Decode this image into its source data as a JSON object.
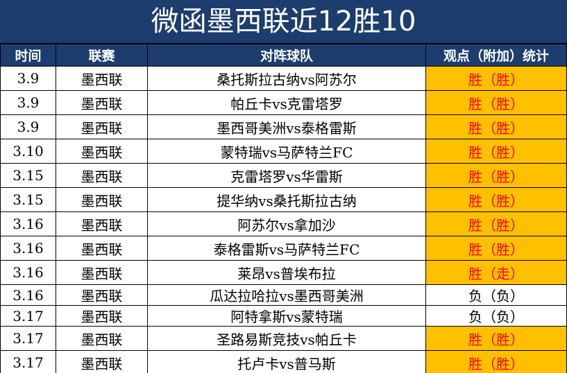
{
  "title": "微函墨西联近12胜10",
  "headers": [
    "时间",
    "联赛",
    "对阵球队",
    "观点（附加）统计"
  ],
  "rows": [
    {
      "date": "3.9",
      "league": "墨西联",
      "match": "桑托斯拉古纳vs阿苏尔",
      "result": "胜（胜）",
      "highlight": true
    },
    {
      "date": "3.9",
      "league": "墨西联",
      "match": "帕丘卡vs克雷塔罗",
      "result": "胜（胜）",
      "highlight": true
    },
    {
      "date": "3.9",
      "league": "墨西联",
      "match": "墨西哥美洲vs泰格雷斯",
      "result": "胜（胜）",
      "highlight": true
    },
    {
      "date": "3.10",
      "league": "墨西联",
      "match": "蒙特瑞vs马萨特兰FC",
      "result": "胜（胜）",
      "highlight": true
    },
    {
      "date": "3.15",
      "league": "墨西联",
      "match": "克雷塔罗vs华雷斯",
      "result": "胜（胜）",
      "highlight": true
    },
    {
      "date": "3.15",
      "league": "墨西联",
      "match": "提华纳vs桑托斯拉古纳",
      "result": "胜（胜）",
      "highlight": true
    },
    {
      "date": "3.16",
      "league": "墨西联",
      "match": "阿苏尔vs拿加沙",
      "result": "胜（胜）",
      "highlight": true
    },
    {
      "date": "3.16",
      "league": "墨西联",
      "match": "泰格雷斯vs马萨特兰FC",
      "result": "胜（胜）",
      "highlight": true
    },
    {
      "date": "3.16",
      "league": "墨西联",
      "match": "莱昂vs普埃布拉",
      "result": "胜（走）",
      "highlight": true
    },
    {
      "date": "3.16",
      "league": "墨西联",
      "match": "瓜达拉哈拉vs墨西哥美洲",
      "result": "负（负）",
      "highlight": false
    },
    {
      "date": "3.17",
      "league": "墨西联",
      "match": "阿特拿斯vs蒙特瑞",
      "result": "负（负）",
      "highlight": false
    },
    {
      "date": "3.17",
      "league": "墨西联",
      "match": "圣路易斯竞技vs帕丘卡",
      "result": "胜（胜）",
      "highlight": true
    },
    {
      "date": "3.17",
      "league": "墨西联",
      "match": "托卢卡vs普马斯",
      "result": "胜（胜）",
      "highlight": true
    }
  ],
  "colors": {
    "header_bg": "#1d3d6e",
    "highlight_bg": "#ffc000",
    "win_text": "#ff0000"
  }
}
